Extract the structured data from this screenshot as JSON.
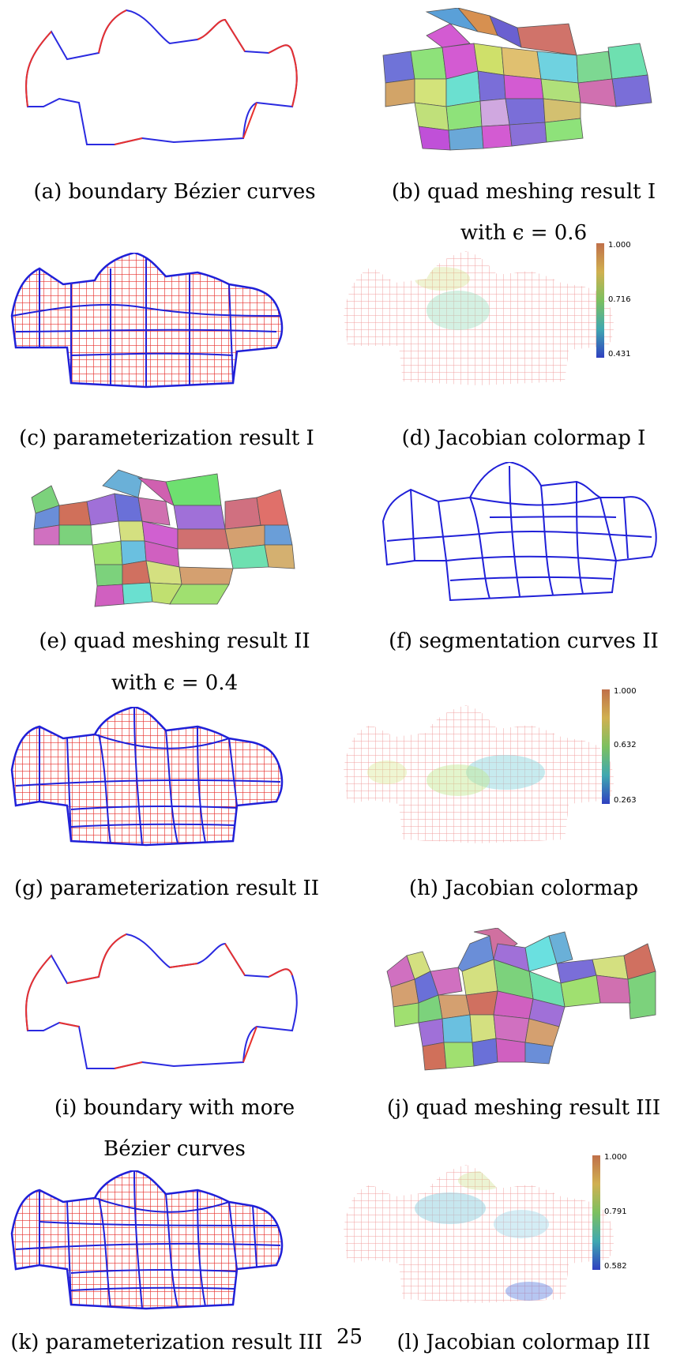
{
  "figure": {
    "captions": {
      "a": "(a) boundary Bézier curves",
      "b": "(b) quad meshing result I",
      "b2": "with ϵ = 0.6",
      "c": "(c) parameterization result I",
      "d": "(d) Jacobian colormap I",
      "e": "(e) quad meshing result II",
      "e2": "with ϵ = 0.4",
      "f": "(f) segmentation curves II",
      "g": "(g) parameterization result II",
      "h": "(h) Jacobian colormap",
      "i": "(i) boundary with more",
      "i2": "Bézier curves",
      "j": "(j) quad meshing result III",
      "k": "(k) parameterization result III",
      "l": "(l) Jacobian colormap III"
    },
    "colorbars": {
      "d": {
        "max": "1.000",
        "mid": "0.716",
        "min": "0.431"
      },
      "h": {
        "max": "1.000",
        "mid": "0.632",
        "min": "0.263"
      },
      "l": {
        "max": "1.000",
        "mid": "0.791",
        "min": "0.582"
      }
    },
    "colors": {
      "boundary_red": "#e8312d",
      "boundary_blue": "#2a2ae0",
      "grid_red": "#e8312d",
      "grid_blue": "#2020d8"
    }
  },
  "page_number": "25"
}
